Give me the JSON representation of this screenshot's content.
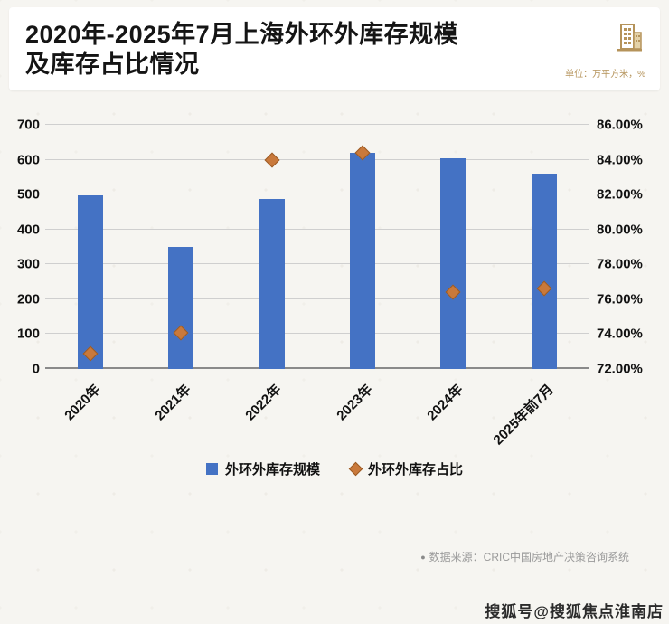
{
  "header": {
    "title_line1": "2020年-2025年7月上海外环外库存规模",
    "title_line2": "及库存占比情况",
    "unit_label": "单位：万平方米，%"
  },
  "chart_data": {
    "type": "combo",
    "title": "2020年-2025年7月上海外环外库存规模及库存占比情况",
    "categories": [
      "2020年",
      "2021年",
      "2022年",
      "2023年",
      "2024年",
      "2025年前7月"
    ],
    "series": [
      {
        "name": "外环外库存规模",
        "type": "bar",
        "axis": "left",
        "color": "#4472c4",
        "values": [
          498,
          350,
          488,
          620,
          605,
          560
        ]
      },
      {
        "name": "外环外库存占比",
        "type": "scatter",
        "axis": "right",
        "color": "#c9793b",
        "values": [
          72.9,
          74.1,
          84.0,
          84.4,
          76.4,
          76.6
        ]
      }
    ],
    "left_axis": {
      "min": 0,
      "max": 700,
      "step": 100,
      "ticks": [
        "700",
        "600",
        "500",
        "400",
        "300",
        "200",
        "100",
        "0"
      ]
    },
    "right_axis": {
      "min": 72,
      "max": 86,
      "step": 2,
      "ticks": [
        "86.00%",
        "84.00%",
        "82.00%",
        "80.00%",
        "78.00%",
        "76.00%",
        "74.00%",
        "72.00%"
      ]
    },
    "grid": true,
    "legend_position": "bottom",
    "legend": [
      {
        "label": "外环外库存规模",
        "marker": "square",
        "color": "#4472c4"
      },
      {
        "label": "外环外库存占比",
        "marker": "diamond",
        "color": "#c9793b"
      }
    ]
  },
  "footer": {
    "source_bullet": "●",
    "source": "数据来源：CRIC中国房地产决策咨询系统",
    "watermark": "搜狐号@搜狐焦点淮南店"
  },
  "colors": {
    "bar": "#4472c4",
    "marker": "#c9793b",
    "accent_gold": "#b5935a",
    "grid": "#cfcfcf"
  }
}
